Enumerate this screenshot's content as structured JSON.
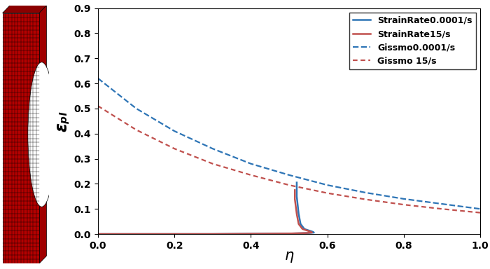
{
  "chart_data": {
    "type": "line",
    "x_label": "η",
    "y_label": "εₚₗ",
    "xlim": [
      0.0,
      1.0
    ],
    "xticks": [
      0.0,
      0.2,
      0.4,
      0.6,
      0.8,
      1.0
    ],
    "ylim": [
      0.0,
      0.9
    ],
    "yticks": [
      0.0,
      0.1,
      0.2,
      0.3,
      0.4,
      0.5,
      0.6,
      0.7,
      0.8,
      0.9
    ],
    "grid": false,
    "legend": "upper right",
    "series": [
      {
        "name": "StrainRate0.0001/s",
        "color": "#2E75B6",
        "line_style": "solid",
        "x": [
          0.0,
          0.3,
          0.5,
          0.55,
          0.565,
          0.56,
          0.54,
          0.53,
          0.525,
          0.52,
          0.52
        ],
        "values": [
          0.0,
          0.0,
          0.002,
          0.004,
          0.006,
          0.01,
          0.02,
          0.04,
          0.08,
          0.15,
          0.205
        ]
      },
      {
        "name": "StrainRate15/s",
        "color": "#C0504D",
        "line_style": "solid",
        "x": [
          0.0,
          0.3,
          0.5,
          0.545,
          0.56,
          0.555,
          0.535,
          0.525,
          0.52,
          0.515,
          0.515
        ],
        "values": [
          0.0,
          0.0,
          0.002,
          0.004,
          0.006,
          0.01,
          0.02,
          0.04,
          0.08,
          0.14,
          0.175
        ]
      },
      {
        "name": "Gissmo0.0001/s",
        "color": "#2E75B6",
        "line_style": "dashed",
        "x": [
          0.0,
          0.1,
          0.2,
          0.3,
          0.4,
          0.5,
          0.6,
          0.7,
          0.8,
          0.9,
          1.0
        ],
        "values": [
          0.62,
          0.5,
          0.41,
          0.34,
          0.28,
          0.235,
          0.195,
          0.165,
          0.14,
          0.12,
          0.1
        ]
      },
      {
        "name": "Gissmo 15/s",
        "color": "#C0504D",
        "line_style": "dotted",
        "x": [
          0.0,
          0.1,
          0.2,
          0.3,
          0.4,
          0.5,
          0.6,
          0.7,
          0.8,
          0.9,
          1.0
        ],
        "values": [
          0.51,
          0.415,
          0.34,
          0.28,
          0.235,
          0.195,
          0.163,
          0.138,
          0.117,
          0.1,
          0.085
        ]
      }
    ]
  }
}
